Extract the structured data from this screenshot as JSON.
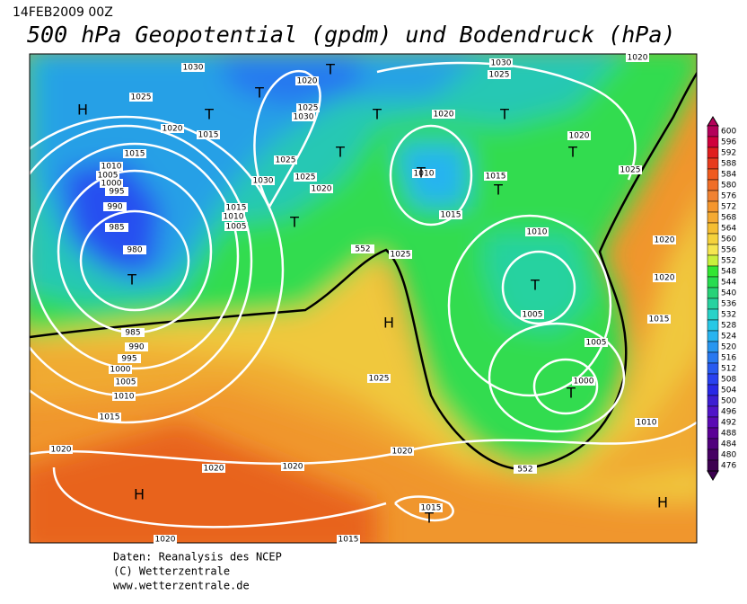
{
  "header": {
    "date": "14FEB2009 00Z",
    "title": "500 hPa Geopotential (gpdm) und Bodendruck (hPa)"
  },
  "legend": {
    "labels": [
      600,
      596,
      592,
      588,
      584,
      580,
      576,
      572,
      568,
      564,
      560,
      556,
      552,
      548,
      544,
      540,
      536,
      532,
      528,
      524,
      520,
      516,
      512,
      508,
      504,
      500,
      496,
      492,
      488,
      484,
      480,
      476
    ],
    "colors": [
      "#b4005a",
      "#d0003c",
      "#e01e1e",
      "#e83c1e",
      "#f05a1e",
      "#f06e28",
      "#f08232",
      "#f5962d",
      "#f5aa32",
      "#f5be32",
      "#f5d23c",
      "#f5e650",
      "#c8f03c",
      "#32e632",
      "#28dc50",
      "#28d278",
      "#28d2a0",
      "#28d2c8",
      "#28c8e6",
      "#28b4f0",
      "#2896f0",
      "#2878f0",
      "#285af0",
      "#2841f0",
      "#2828e6",
      "#3c1ed2",
      "#5014c8",
      "#5a0ab4",
      "#5a0096",
      "#50007d",
      "#460064",
      "#3c0050"
    ]
  },
  "isobar_labels": [
    "1030",
    "1020",
    "1025",
    "1020",
    "1015",
    "1025",
    "1030",
    "1015",
    "1010",
    "1005",
    "1000",
    "995",
    "990",
    "985",
    "980",
    "1025",
    "1030",
    "1025",
    "1020",
    "1015",
    "1010",
    "1005",
    "1030",
    "1025",
    "1020",
    "1020",
    "1010",
    "1015",
    "1015",
    "1025",
    "1010",
    "1020",
    "1025",
    "1020",
    "1005",
    "1015",
    "1005",
    "1000",
    "1010",
    "985",
    "990",
    "995",
    "1000",
    "1005",
    "1010",
    "1015",
    "1025",
    "1020",
    "1020",
    "1020",
    "1020",
    "1015",
    "1020",
    "1015",
    "1020",
    "552",
    "552"
  ],
  "centers": [
    "H",
    "T",
    "T",
    "T",
    "T",
    "T",
    "T",
    "T",
    "T",
    "T",
    "T",
    "T",
    "T",
    "T",
    "H",
    "H",
    "T",
    "H"
  ],
  "footer": {
    "line1": "Daten: Reanalysis des NCEP",
    "line2": "(C) Wetterzentrale",
    "line3": "www.wetterzentrale.de"
  }
}
